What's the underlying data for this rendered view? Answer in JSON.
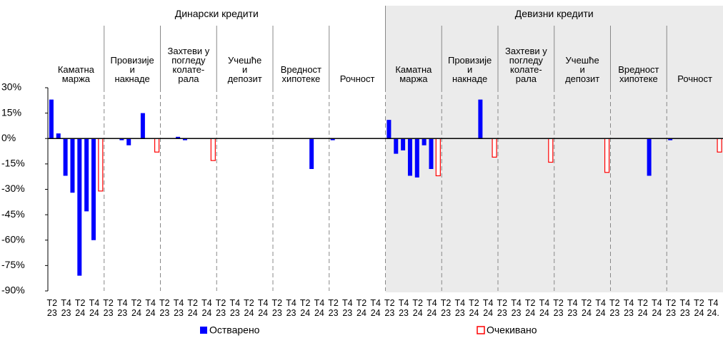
{
  "chart_data": {
    "type": "bar",
    "groups": [
      {
        "name": "Динарски кредити",
        "subgroups": [
          "Каматна\nмаржа",
          "Провизије\nи\nнакнаде",
          "Захтеви у\nпогледу\nколате-\nрала",
          "Учешће\nи\nдепозит",
          "Вредност\nхипотеке",
          "Рочност"
        ]
      },
      {
        "name": "Девизни кредити",
        "subgroups": [
          "Каматна\nмаржа",
          "Провизије\nи\nнакнаде",
          "Захтеви у\nпогледу\nколате-\nрала",
          "Учешће\nи\nдепозит",
          "Вредност\nхипотеке",
          "Рочност"
        ]
      }
    ],
    "categories": [
      "T2\n23",
      null,
      "T4\n23",
      null,
      "T2\n24",
      null,
      "T4\n24",
      null,
      "T2\n23",
      null,
      "T4\n23",
      null,
      "T2\n24",
      null,
      "T4\n24",
      null,
      "T2\n23",
      null,
      "T4\n23",
      null,
      "T2\n24",
      null,
      "T4\n24",
      null,
      "T2\n23",
      null,
      "T4\n23",
      null,
      "T2\n24",
      null,
      "T4\n24",
      null,
      "T2\n23",
      null,
      "T4\n23",
      null,
      "T2\n24",
      null,
      "T4\n24",
      null,
      "T2\n23",
      null,
      "T4\n23",
      null,
      "T2\n24",
      null,
      "T4\n24",
      null,
      "T2\n23",
      null,
      "T4\n23",
      null,
      "T2\n24",
      null,
      "T4\n24",
      null,
      "T2\n23",
      null,
      "T4\n23",
      null,
      "T2\n24",
      null,
      "T4\n24",
      null,
      "T2\n23",
      null,
      "T4\n23",
      null,
      "T2\n24",
      null,
      "T4\n24",
      null,
      "T2\n23",
      null,
      "T4\n23",
      null,
      "T2\n24",
      null,
      "T4\n24",
      null,
      "T2\n23",
      null,
      "T4\n23",
      null,
      "T2\n24",
      null,
      "T4\n24",
      null,
      "T2\n23",
      null,
      "T4\n23",
      null,
      "T2\n24",
      null,
      "T4\n24.",
      null
    ],
    "series": [
      {
        "name": "Остварено",
        "color": "#0000ff",
        "style": "filled",
        "values": [
          23,
          3,
          -22,
          -32,
          -81,
          -43,
          -60,
          null,
          0,
          0,
          -1,
          -4,
          0,
          15,
          0,
          null,
          0,
          0,
          1,
          -1,
          0,
          0,
          0,
          null,
          0,
          0,
          0,
          0,
          0,
          0,
          0,
          null,
          0,
          0,
          0,
          0,
          0,
          -18,
          0,
          null,
          -1,
          0,
          0,
          0,
          0,
          0,
          0,
          null,
          11,
          -9,
          -7,
          -22,
          -23,
          -4,
          -18,
          null,
          0,
          0,
          0,
          0,
          0,
          23,
          0,
          null,
          0,
          0,
          0,
          0,
          0,
          0,
          0,
          null,
          0,
          0,
          0,
          0,
          0,
          0,
          0,
          null,
          0,
          0,
          0,
          0,
          0,
          -22,
          0,
          null,
          -1,
          0,
          0,
          0,
          0,
          0,
          0,
          null
        ]
      },
      {
        "name": "Очекивано",
        "color": "#ff0000",
        "style": "outline",
        "values": [
          null,
          null,
          null,
          null,
          null,
          null,
          null,
          -31,
          null,
          null,
          null,
          null,
          null,
          null,
          null,
          -8,
          null,
          null,
          null,
          null,
          null,
          null,
          null,
          -13,
          null,
          null,
          null,
          null,
          null,
          null,
          null,
          0,
          null,
          null,
          null,
          null,
          null,
          null,
          null,
          0,
          null,
          null,
          null,
          null,
          null,
          null,
          null,
          0,
          null,
          null,
          null,
          null,
          null,
          null,
          null,
          -22,
          null,
          null,
          null,
          null,
          null,
          null,
          null,
          -11,
          null,
          null,
          null,
          null,
          null,
          null,
          null,
          -14,
          null,
          null,
          null,
          null,
          null,
          null,
          null,
          -20,
          null,
          null,
          null,
          null,
          null,
          null,
          null,
          0,
          null,
          null,
          null,
          null,
          null,
          null,
          null,
          -8
        ]
      }
    ],
    "ylim": [
      -90,
      30
    ],
    "yticks": [
      {
        "value": 30,
        "label": "30%"
      },
      {
        "value": 15,
        "label": "15%"
      },
      {
        "value": 0,
        "label": "0%"
      },
      {
        "value": -15,
        "label": "-15%"
      },
      {
        "value": -30,
        "label": "-30%"
      },
      {
        "value": -45,
        "label": "-45%"
      },
      {
        "value": -60,
        "label": "-60%"
      },
      {
        "value": -75,
        "label": "-75%"
      },
      {
        "value": -90,
        "label": "-90%"
      }
    ],
    "shaded_group": 1
  }
}
